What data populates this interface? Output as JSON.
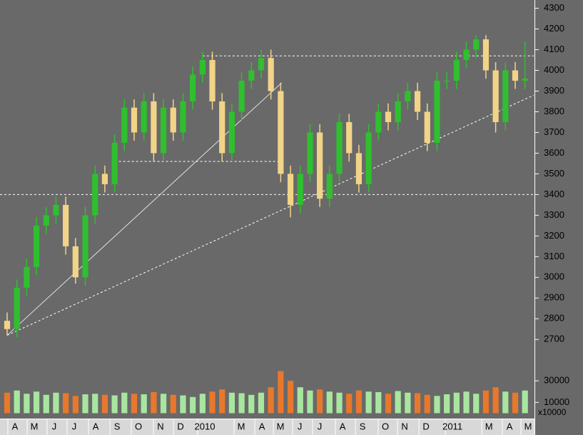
{
  "chart_data": {
    "type": "candlestick",
    "up_color": "#2fbf2f",
    "down_color": "#f2d488",
    "xlim": [
      -0.73,
      53.9
    ],
    "ylim": [
      2580,
      4340
    ],
    "yticks": [
      2700,
      2800,
      2900,
      3000,
      3100,
      3200,
      3300,
      3400,
      3500,
      3600,
      3700,
      3800,
      3900,
      4000,
      4100,
      4200,
      4300
    ],
    "xticks": [
      {
        "value": 0.8,
        "label": "A"
      },
      {
        "value": 2.78,
        "label": "M"
      },
      {
        "value": 4.82,
        "label": "J"
      },
      {
        "value": 6.87,
        "label": "J"
      },
      {
        "value": 9.06,
        "label": "A"
      },
      {
        "value": 11.25,
        "label": "S"
      },
      {
        "value": 13.44,
        "label": "O"
      },
      {
        "value": 15.7,
        "label": "N"
      },
      {
        "value": 17.75,
        "label": "D"
      },
      {
        "value": 20.23,
        "label": "2010"
      },
      {
        "value": 23.96,
        "label": "M"
      },
      {
        "value": 26.08,
        "label": "A"
      },
      {
        "value": 27.98,
        "label": "M"
      },
      {
        "value": 29.95,
        "label": "J"
      },
      {
        "value": 31.99,
        "label": "J"
      },
      {
        "value": 34.33,
        "label": "A"
      },
      {
        "value": 36.38,
        "label": "S"
      },
      {
        "value": 38.71,
        "label": "O"
      },
      {
        "value": 40.69,
        "label": "N"
      },
      {
        "value": 42.88,
        "label": "D"
      },
      {
        "value": 45.58,
        "label": "2011"
      },
      {
        "value": 49.31,
        "label": "M"
      },
      {
        "value": 51.42,
        "label": "A"
      },
      {
        "value": 53.32,
        "label": "M"
      }
    ],
    "open": [
      2790,
      2750,
      2950,
      3050,
      3250,
      3300,
      3350,
      3150,
      3000,
      3300,
      3500,
      3450,
      3650,
      3820,
      3700,
      3850,
      3600,
      3820,
      3700,
      3850,
      3980,
      4050,
      3850,
      3600,
      3800,
      3950,
      4000,
      4060,
      3900,
      3500,
      3350,
      3500,
      3700,
      3380,
      3500,
      3750,
      3600,
      3450,
      3700,
      3800,
      3750,
      3850,
      3900,
      3800,
      3650,
      3950,
      3950,
      4050,
      4100,
      4150,
      4000,
      3750,
      4000,
      3950
    ],
    "high": [
      2830,
      2990,
      3090,
      3290,
      3340,
      3390,
      3390,
      3190,
      3340,
      3540,
      3540,
      3690,
      3860,
      3860,
      3890,
      3890,
      3860,
      3860,
      3890,
      4020,
      4090,
      4090,
      3890,
      3840,
      3990,
      4040,
      4100,
      4100,
      3940,
      3540,
      3540,
      3740,
      3740,
      3540,
      3790,
      3790,
      3640,
      3740,
      3840,
      3840,
      3890,
      3940,
      3940,
      3840,
      3990,
      3990,
      4090,
      4140,
      4170,
      4170,
      4040,
      4040,
      4040,
      4140
    ],
    "low": [
      2720,
      2710,
      2910,
      3010,
      3210,
      3260,
      3110,
      2970,
      2960,
      3260,
      3410,
      3410,
      3610,
      3660,
      3660,
      3560,
      3560,
      3660,
      3660,
      3810,
      3940,
      3810,
      3560,
      3560,
      3760,
      3910,
      3960,
      3860,
      3460,
      3290,
      3310,
      3460,
      3340,
      3340,
      3460,
      3560,
      3410,
      3410,
      3660,
      3710,
      3710,
      3810,
      3760,
      3610,
      3610,
      3910,
      3910,
      4010,
      4060,
      3960,
      3700,
      3710,
      3910,
      3910
    ],
    "close": [
      2750,
      2950,
      3050,
      3250,
      3300,
      3350,
      3150,
      3000,
      3300,
      3500,
      3450,
      3650,
      3820,
      3700,
      3850,
      3600,
      3820,
      3700,
      3850,
      3980,
      4050,
      3850,
      3600,
      3800,
      3950,
      4000,
      4060,
      3900,
      3500,
      3350,
      3500,
      3700,
      3380,
      3500,
      3750,
      3600,
      3450,
      3700,
      3800,
      3750,
      3850,
      3900,
      3800,
      3650,
      3950,
      3950,
      4050,
      4100,
      4150,
      4000,
      3750,
      4000,
      3950,
      3960
    ],
    "levels": [
      {
        "x": [
          -0.73,
          53.9
        ],
        "y": [
          3400,
          3400
        ],
        "style": "dashed"
      },
      {
        "x": [
          20,
          53.9
        ],
        "y": [
          4070,
          4070
        ],
        "style": "dashed"
      },
      {
        "x": [
          11,
          27.8
        ],
        "y": [
          3560,
          3560
        ],
        "style": "dashed"
      },
      {
        "x": [
          0,
          28.1
        ],
        "y": [
          2720,
          3940
        ],
        "style": "solid"
      },
      {
        "x": [
          0,
          53.9
        ],
        "y": [
          2720,
          3880
        ],
        "style": "dashed"
      }
    ],
    "volume": {
      "unit": "x10000",
      "ylim": [
        -3000,
        42000
      ],
      "yticks": [
        10000,
        30000
      ],
      "up_color": "#a8e6a0",
      "down_color": "#e8782c",
      "values": [
        19000,
        21000,
        18000,
        20000,
        17000,
        19000,
        18500,
        16000,
        17500,
        18000,
        17000,
        16500,
        19000,
        18000,
        17500,
        19500,
        18000,
        17000,
        16500,
        15000,
        18000,
        20000,
        22000,
        19000,
        18500,
        17000,
        19000,
        24000,
        39000,
        30000,
        24000,
        21000,
        22000,
        20000,
        19000,
        18000,
        21000,
        20000,
        19500,
        18000,
        20500,
        19000,
        18500,
        17000,
        16000,
        17500,
        19000,
        20000,
        18000,
        21000,
        24000,
        20000,
        19000,
        21000
      ]
    }
  }
}
